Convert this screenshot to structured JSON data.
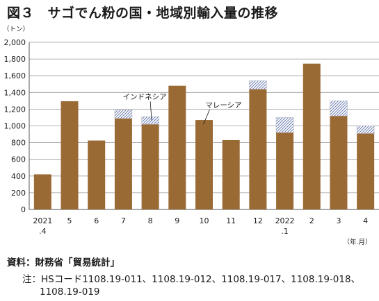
{
  "title": "図３　サゴでん粉の国・地域別輸入量の推移",
  "chart_data": {
    "type": "bar",
    "stacked": true,
    "title": "図３　サゴでん粉の国・地域別輸入量の推移",
    "ylabel": "（トン）",
    "xlabel": "（年.月）",
    "ylim": [
      0,
      2000
    ],
    "yticks": [
      "0",
      "200",
      "400",
      "600",
      "800",
      "1,000",
      "1,200",
      "1,400",
      "1,600",
      "1,800",
      "2,000"
    ],
    "ytick_values": [
      0,
      200,
      400,
      600,
      800,
      1000,
      1200,
      1400,
      1600,
      1800,
      2000
    ],
    "grid": true,
    "categories": [
      {
        "line1": "2021",
        "line2": ".4"
      },
      {
        "line1": "5",
        "line2": ""
      },
      {
        "line1": "6",
        "line2": ""
      },
      {
        "line1": "7",
        "line2": ""
      },
      {
        "line1": "8",
        "line2": ""
      },
      {
        "line1": "9",
        "line2": ""
      },
      {
        "line1": "10",
        "line2": ""
      },
      {
        "line1": "11",
        "line2": ""
      },
      {
        "line1": "12",
        "line2": ""
      },
      {
        "line1": "2022",
        "line2": ".1"
      },
      {
        "line1": "2",
        "line2": ""
      },
      {
        "line1": "3",
        "line2": ""
      },
      {
        "line1": "4",
        "line2": ""
      }
    ],
    "series": [
      {
        "name": "マレーシア",
        "color": "#9a6a35",
        "pattern": "solid",
        "values": [
          420,
          1295,
          825,
          1090,
          1020,
          1480,
          1070,
          830,
          1440,
          920,
          1745,
          1120,
          910
        ]
      },
      {
        "name": "インドネシア",
        "color": "#5a6fa8",
        "pattern": "hatch",
        "values": [
          0,
          0,
          0,
          100,
          90,
          0,
          0,
          0,
          100,
          180,
          0,
          180,
          90
        ]
      }
    ],
    "annotations": [
      {
        "text": "インドネシア",
        "series": 1,
        "category": 4
      },
      {
        "text": "マレーシア",
        "series": 0,
        "category": 6
      }
    ]
  },
  "source": "資料：財務省「貿易統計」",
  "note": {
    "label": "注：",
    "line1": "HSコード1108.19-011、1108.19-012、1108.19-017、1108.19-018、",
    "line2": "1108.19-019"
  }
}
